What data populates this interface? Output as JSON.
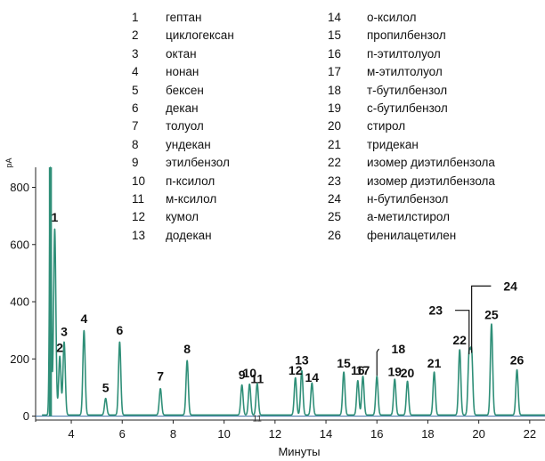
{
  "chart_data": {
    "type": "line",
    "xlabel": "Минуты",
    "ylabel": "pA",
    "xlim": [
      2.6,
      22.6
    ],
    "ylim": [
      -20,
      870
    ],
    "x_ticks": [
      4,
      6,
      8,
      10,
      12,
      14,
      16,
      18,
      20,
      22
    ],
    "y_ticks": [
      0,
      200,
      400,
      600,
      800
    ],
    "baseline_marker": "11",
    "grid": false,
    "legend_placement": "top",
    "colors": {
      "trace": "#2f8f78",
      "baseline": "#3a6ea5",
      "text": "#111111"
    },
    "solvent_peak": {
      "x": 3.18,
      "height": 870,
      "width": 0.035
    },
    "peaks": [
      {
        "label": "1",
        "x": 3.35,
        "height": 650,
        "label_y": 680
      },
      {
        "label": "2",
        "x": 3.55,
        "height": 205,
        "label_y": 225
      },
      {
        "label": "3",
        "x": 3.72,
        "height": 255,
        "label_y": 280
      },
      {
        "label": "4",
        "x": 4.5,
        "height": 295,
        "label_y": 325
      },
      {
        "label": "5",
        "x": 5.35,
        "height": 58,
        "label_y": 85
      },
      {
        "label": "6",
        "x": 5.9,
        "height": 255,
        "label_y": 285
      },
      {
        "label": "7",
        "x": 7.5,
        "height": 92,
        "label_y": 125
      },
      {
        "label": "8",
        "x": 8.55,
        "height": 190,
        "label_y": 220
      },
      {
        "label": "9",
        "x": 10.7,
        "height": 105,
        "label_y": 130
      },
      {
        "label": "10",
        "x": 11.0,
        "height": 108,
        "label_y": 135
      },
      {
        "label": "11",
        "x": 11.3,
        "height": 110,
        "label_y": 115
      },
      {
        "label": "12",
        "x": 12.8,
        "height": 130,
        "label_y": 145
      },
      {
        "label": "13",
        "x": 13.05,
        "height": 155,
        "label_y": 180
      },
      {
        "label": "14",
        "x": 13.45,
        "height": 112,
        "label_y": 120
      },
      {
        "label": "15",
        "x": 14.7,
        "height": 150,
        "label_y": 170
      },
      {
        "label": "16",
        "x": 15.25,
        "height": 120,
        "label_y": 145
      },
      {
        "label": "17",
        "x": 15.45,
        "height": 135,
        "label_y": 145
      },
      {
        "label": "18",
        "x": 16.0,
        "height": 135,
        "label_y": 0
      },
      {
        "label": "19",
        "x": 16.7,
        "height": 125,
        "label_y": 140
      },
      {
        "label": "20",
        "x": 17.2,
        "height": 118,
        "label_y": 135
      },
      {
        "label": "21",
        "x": 18.25,
        "height": 150,
        "label_y": 170
      },
      {
        "label": "22",
        "x": 19.25,
        "height": 228,
        "label_y": 250
      },
      {
        "label": "23",
        "x": 19.62,
        "height": 210,
        "label_y": 0
      },
      {
        "label": "24",
        "x": 19.72,
        "height": 215,
        "label_y": 0
      },
      {
        "label": "25",
        "x": 20.5,
        "height": 318,
        "label_y": 340
      },
      {
        "label": "26",
        "x": 21.5,
        "height": 158,
        "label_y": 180
      }
    ],
    "callouts": [
      {
        "label": "18",
        "peak_x": 16.0,
        "peak_top": 225,
        "label_x": 16.5,
        "label_y": 235
      },
      {
        "label": "23",
        "peak_x": 19.62,
        "peak_top": 370,
        "label_x": 18.65,
        "label_y": 370
      },
      {
        "label": "24",
        "peak_x": 19.72,
        "peak_top": 455,
        "label_x": 20.9,
        "label_y": 455
      }
    ],
    "compounds": [
      {
        "num": "1",
        "name": "гептан"
      },
      {
        "num": "2",
        "name": "циклогексан"
      },
      {
        "num": "3",
        "name": "октан"
      },
      {
        "num": "4",
        "name": "нонан"
      },
      {
        "num": "5",
        "name": "бексен"
      },
      {
        "num": "6",
        "name": "декан"
      },
      {
        "num": "7",
        "name": "толуол"
      },
      {
        "num": "8",
        "name": "ундекан"
      },
      {
        "num": "9",
        "name": "этилбензол"
      },
      {
        "num": "10",
        "name": "п-ксилол"
      },
      {
        "num": "11",
        "name": "м-ксилол"
      },
      {
        "num": "12",
        "name": "кумол"
      },
      {
        "num": "13",
        "name": "додекан"
      },
      {
        "num": "14",
        "name": "о-ксилол"
      },
      {
        "num": "15",
        "name": "пропилбензол"
      },
      {
        "num": "16",
        "name": "п-этилтолуол"
      },
      {
        "num": "17",
        "name": "м-этилтолуол"
      },
      {
        "num": "18",
        "name": "т-бутилбензол"
      },
      {
        "num": "19",
        "name": "с-бутилбензол"
      },
      {
        "num": "20",
        "name": "стирол"
      },
      {
        "num": "21",
        "name": "тридекан"
      },
      {
        "num": "22",
        "name": "изомер диэтилбензола"
      },
      {
        "num": "23",
        "name": "изомер диэтилбензола"
      },
      {
        "num": "24",
        "name": "н-бутилбензол"
      },
      {
        "num": "25",
        "name": "а-метилстирол"
      },
      {
        "num": "26",
        "name": "фенилацетилен"
      }
    ]
  }
}
